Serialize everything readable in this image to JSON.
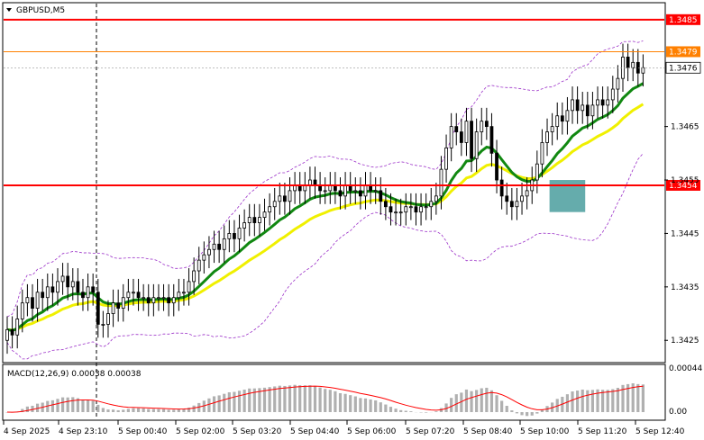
{
  "chart_data": [
    {
      "type": "candlestick",
      "title": "GBPUSD,M5",
      "symbol_icon": "triangle-down-icon",
      "y_ticks": [
        "1.3465",
        "1.3455",
        "1.3445",
        "1.3435",
        "1.3425"
      ],
      "ylim": [
        1.3421,
        1.3488
      ],
      "x_ticks": [
        "4 Sep 2025",
        "4 Sep 23:10",
        "5 Sep 00:40",
        "5 Sep 02:00",
        "5 Sep 03:20",
        "5 Sep 04:40",
        "5 Sep 06:00",
        "5 Sep 07:20",
        "5 Sep 08:40",
        "5 Sep 10:00",
        "5 Sep 11:20",
        "5 Sep 12:40"
      ],
      "h_lines": [
        {
          "price": 1.3485,
          "label": "1.3485",
          "color": "#ff0000"
        },
        {
          "price": 1.3479,
          "label": "1.3479",
          "color": "#ff8000"
        },
        {
          "price": 1.3454,
          "label": "1.3454",
          "color": "#ff0000"
        }
      ],
      "current_price": {
        "price": 1.3476,
        "label": "1.3476"
      },
      "candle_closes": [
        1.3427,
        1.3426,
        1.3429,
        1.3432,
        1.3433,
        1.3431,
        1.3434,
        1.3433,
        1.3435,
        1.3434,
        1.3436,
        1.3437,
        1.3435,
        1.3436,
        1.3434,
        1.3433,
        1.3435,
        1.3434,
        1.3428,
        1.3428,
        1.343,
        1.3432,
        1.3431,
        1.3433,
        1.3434,
        1.3434,
        1.3433,
        1.3433,
        1.3432,
        1.3433,
        1.3433,
        1.3433,
        1.3432,
        1.3433,
        1.3434,
        1.3434,
        1.3436,
        1.3438,
        1.344,
        1.3441,
        1.3442,
        1.3443,
        1.3442,
        1.3444,
        1.3445,
        1.3444,
        1.3446,
        1.3447,
        1.3448,
        1.3447,
        1.3448,
        1.3449,
        1.345,
        1.3451,
        1.3452,
        1.3451,
        1.3453,
        1.3454,
        1.3453,
        1.3454,
        1.3455,
        1.3454,
        1.3453,
        1.3453,
        1.3454,
        1.3453,
        1.3452,
        1.3454,
        1.3453,
        1.3453,
        1.3452,
        1.3454,
        1.3453,
        1.3453,
        1.3451,
        1.345,
        1.3449,
        1.3449,
        1.3449,
        1.345,
        1.345,
        1.3449,
        1.345,
        1.345,
        1.3451,
        1.3452,
        1.3457,
        1.3461,
        1.3465,
        1.3464,
        1.3462,
        1.3466,
        1.3459,
        1.3464,
        1.3466,
        1.3465,
        1.346,
        1.3455,
        1.3452,
        1.3451,
        1.345,
        1.3451,
        1.3452,
        1.3453,
        1.3455,
        1.3458,
        1.3462,
        1.3464,
        1.3465,
        1.3467,
        1.3466,
        1.3468,
        1.347,
        1.3468,
        1.3469,
        1.3467,
        1.3469,
        1.347,
        1.3469,
        1.347,
        1.3472,
        1.3474,
        1.3478,
        1.3476,
        1.3477,
        1.3475,
        1.3476
      ],
      "ema_green_label": "",
      "ema_yellow_label": "",
      "highlight_zone": {
        "x_from_candle": 108,
        "x_to_candle": 114,
        "price_top": 1.3455,
        "price_bottom": 1.3449,
        "color": "#4a9e9e"
      }
    },
    {
      "type": "histogram",
      "title": "MACD(12,26,9) 0.00038 0.00038",
      "y_ticks": [
        "0.00044",
        "0.00"
      ],
      "histogram_note": "MACD bars with red signal line"
    }
  ]
}
